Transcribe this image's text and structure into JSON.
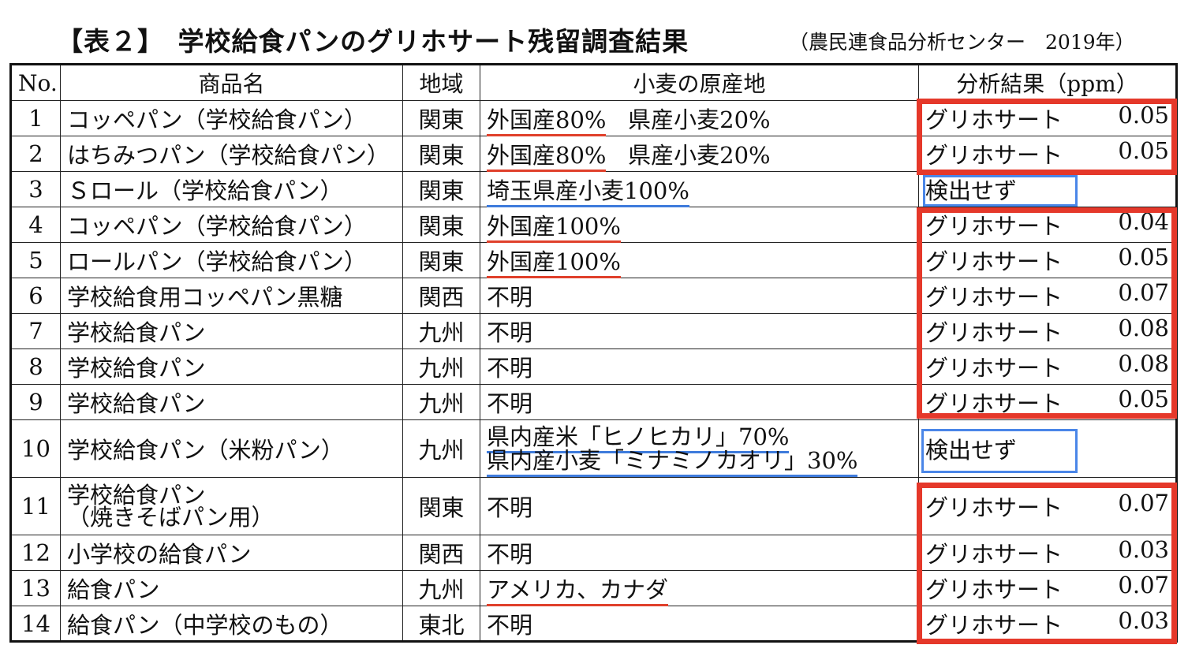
{
  "title": "【表２】　学校給食パンのグリホサート残留調査結果",
  "source": "（農民連食品分析センター　2019年）",
  "headers": {
    "no": "No.",
    "name": "商品名",
    "region": "地域",
    "origin": "小麦の原産地",
    "result": "分析結果（ppm）"
  },
  "rows": [
    {
      "no": "1",
      "name": "コッペパン（学校給食パン）",
      "region": "関東",
      "origin_a": "外国産80%",
      "origin_b": "県産小麦20%",
      "result_label": "グリホサート",
      "result_value": "0.05"
    },
    {
      "no": "2",
      "name": "はちみつパン（学校給食パン）",
      "region": "関東",
      "origin_a": "外国産80%",
      "origin_b": "県産小麦20%",
      "result_label": "グリホサート",
      "result_value": "0.05"
    },
    {
      "no": "3",
      "name": "Ｓロール（学校給食パン）",
      "region": "関東",
      "origin_a": "埼玉県産小麦100%",
      "result_label": "検出せず"
    },
    {
      "no": "4",
      "name": "コッペパン（学校給食パン）",
      "region": "関東",
      "origin_a": "外国産100%",
      "result_label": "グリホサート",
      "result_value": "0.04"
    },
    {
      "no": "5",
      "name": "ロールパン（学校給食パン）",
      "region": "関東",
      "origin_a": "外国産100%",
      "result_label": "グリホサート",
      "result_value": "0.05"
    },
    {
      "no": "6",
      "name": "学校給食用コッペパン黒糖",
      "region": "関西",
      "origin_a": "不明",
      "result_label": "グリホサート",
      "result_value": "0.07"
    },
    {
      "no": "7",
      "name": "学校給食パン",
      "region": "九州",
      "origin_a": "不明",
      "result_label": "グリホサート",
      "result_value": "0.08"
    },
    {
      "no": "8",
      "name": "学校給食パン",
      "region": "九州",
      "origin_a": "不明",
      "result_label": "グリホサート",
      "result_value": "0.08"
    },
    {
      "no": "9",
      "name": "学校給食パン",
      "region": "九州",
      "origin_a": "不明",
      "result_label": "グリホサート",
      "result_value": "0.05"
    },
    {
      "no": "10",
      "name": "学校給食パン（米粉パン）",
      "region": "九州",
      "origin_a": "県内産米「ヒノヒカリ」70%",
      "origin_b": "県内産小麦「ミナミノカオリ」30%",
      "result_label": "検出せず"
    },
    {
      "no": "11",
      "name": "学校給食パン",
      "name_line2": "（焼きそばパン用）",
      "region": "関東",
      "origin_a": "不明",
      "result_label": "グリホサート",
      "result_value": "0.07"
    },
    {
      "no": "12",
      "name": "小学校の給食パン",
      "region": "関西",
      "origin_a": "不明",
      "result_label": "グリホサート",
      "result_value": "0.03"
    },
    {
      "no": "13",
      "name": "給食パン",
      "region": "九州",
      "origin_a": "アメリカ、カナダ",
      "result_label": "グリホサート",
      "result_value": "0.07"
    },
    {
      "no": "14",
      "name": "給食パン（中学校のもの）",
      "region": "東北",
      "origin_a": "不明",
      "result_label": "グリホサート",
      "result_value": "0.03"
    }
  ],
  "colors": {
    "highlight_red": "#e5382a",
    "highlight_blue": "#4a86e8",
    "underline_red": "#e0402b",
    "underline_blue": "#3e7bdc"
  }
}
